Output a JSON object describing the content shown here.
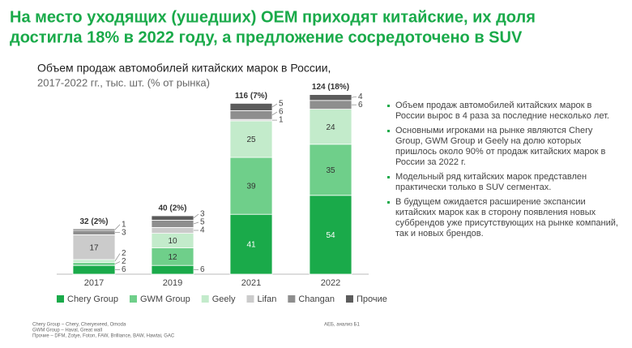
{
  "title_lines": [
    "На место уходящих (ушедших) OEM приходят китайские, их доля",
    "достигла 18% в 2022 году, а предложение сосредоточено в SUV"
  ],
  "chart_data": {
    "type": "stacked-bar",
    "title_lines": [
      "Объем продаж автомобилей китайских марок в России,",
      "2017-2022 гг., тыс. шт. (% от рынка)"
    ],
    "categories": [
      "2017",
      "2019",
      "2021",
      "2022"
    ],
    "total_labels": [
      "32 (2%)",
      "40 (2%)",
      "116 (7%)",
      "124 (18%)"
    ],
    "series": [
      {
        "name": "Chery Group",
        "color": "#1aaa4a",
        "values": [
          6,
          6,
          41,
          54
        ]
      },
      {
        "name": "GWM Group",
        "color": "#6fcf8a",
        "values": [
          2,
          12,
          39,
          35
        ]
      },
      {
        "name": "Geely",
        "color": "#c3ebcb",
        "values": [
          2,
          10,
          25,
          24
        ]
      },
      {
        "name": "Lifan",
        "color": "#cbcbcb",
        "values": [
          17,
          4,
          1,
          null
        ]
      },
      {
        "name": "Changan",
        "color": "#8e8e8e",
        "values": [
          3,
          5,
          6,
          6
        ]
      },
      {
        "name": "Прочие",
        "color": "#5c5c5c",
        "values": [
          1,
          3,
          5,
          4
        ]
      }
    ]
  },
  "bullets": [
    "Объем продаж автомобилей китайских марок в России вырос в 4 раза за последние несколько лет.",
    "Основными игроками на рынке являются Chery Group, GWM Group и Geely  на долю которых пришлось около 90% от продаж китайских марок в России за 2022 г.",
    "Модельный ряд китайских марок представлен практически только в SUV сегментах.",
    "В будущем ожидается расширение экспансии китайских марок как в сторону появления новых суббрендов уже присутствующих на рынке компаний, так и новых брендов."
  ],
  "footnotes": [
    "Chery Group – Chery, Cheryexeed, Omoda",
    "GWM Group – Haval, Great wall",
    "Прочие – DFM, Zotye, Foton, FAW, Brilliance, BAW, Hawtai, GAC"
  ],
  "source": "АЕБ, анализ Б1"
}
